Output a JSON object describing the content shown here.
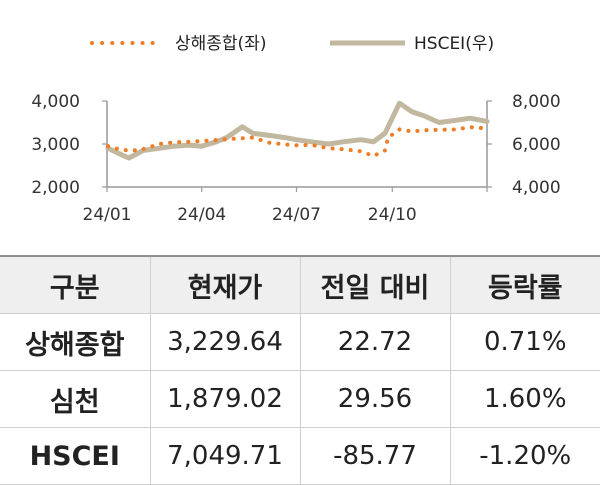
{
  "chart_data": {
    "type": "line",
    "title": "",
    "xlabel": "",
    "ylabel": "",
    "x_tick_labels": [
      "24/01",
      "24/04",
      "24/07",
      "24/10"
    ],
    "ylim_left": [
      2000,
      4000
    ],
    "ylim_right": [
      4000,
      8000
    ],
    "y_left_ticks": [
      "4,000",
      "3,000",
      "2,000"
    ],
    "y_right_ticks": [
      "8,000",
      "6,000",
      "4,000"
    ],
    "grid": false,
    "legend_placement": "top",
    "series": [
      {
        "name": "상해종합(좌)",
        "axis": "left",
        "style": "dotted",
        "color": "#ee7d27",
        "x": [
          "2024-01-02",
          "2024-01-15",
          "2024-02-01",
          "2024-02-20",
          "2024-03-05",
          "2024-03-20",
          "2024-04-01",
          "2024-04-15",
          "2024-05-01",
          "2024-05-20",
          "2024-06-05",
          "2024-06-20",
          "2024-07-01",
          "2024-07-15",
          "2024-08-01",
          "2024-08-15",
          "2024-09-01",
          "2024-09-13",
          "2024-09-24",
          "2024-09-27",
          "2024-10-08",
          "2024-10-20",
          "2024-11-01",
          "2024-11-15",
          "2024-12-01",
          "2024-12-15",
          "2024-12-31"
        ],
        "values": [
          2950,
          2860,
          2850,
          3000,
          3040,
          3050,
          3070,
          3090,
          3120,
          3150,
          3030,
          2990,
          2970,
          2980,
          2900,
          2880,
          2830,
          2720,
          2850,
          3150,
          3340,
          3290,
          3320,
          3330,
          3340,
          3390,
          3360
        ]
      },
      {
        "name": "HSCEI(우)",
        "axis": "right",
        "style": "solid",
        "color": "#c2b79f",
        "x": [
          "2024-01-02",
          "2024-01-15",
          "2024-01-22",
          "2024-02-05",
          "2024-02-20",
          "2024-03-05",
          "2024-03-20",
          "2024-04-01",
          "2024-04-15",
          "2024-04-25",
          "2024-05-10",
          "2024-05-20",
          "2024-06-05",
          "2024-06-20",
          "2024-07-01",
          "2024-07-15",
          "2024-08-01",
          "2024-08-15",
          "2024-09-01",
          "2024-09-13",
          "2024-09-24",
          "2024-09-30",
          "2024-10-08",
          "2024-10-20",
          "2024-11-01",
          "2024-11-15",
          "2024-12-01",
          "2024-12-15",
          "2024-12-31"
        ],
        "values": [
          5800,
          5500,
          5350,
          5700,
          5800,
          5900,
          5950,
          5900,
          6100,
          6300,
          6800,
          6500,
          6400,
          6300,
          6200,
          6100,
          6000,
          6100,
          6200,
          6100,
          6500,
          7100,
          7900,
          7500,
          7300,
          7000,
          7100,
          7200,
          7050
        ]
      }
    ]
  },
  "table": {
    "headers": [
      "구분",
      "현재가",
      "전일 대비",
      "등락률"
    ],
    "rows": [
      [
        "상해종합",
        "3,229.64",
        "22.72",
        "0.71%"
      ],
      [
        "심천",
        "1,879.02",
        "29.56",
        "1.60%"
      ],
      [
        "HSCEI",
        "7,049.71",
        "-85.77",
        "-1.20%"
      ]
    ]
  }
}
